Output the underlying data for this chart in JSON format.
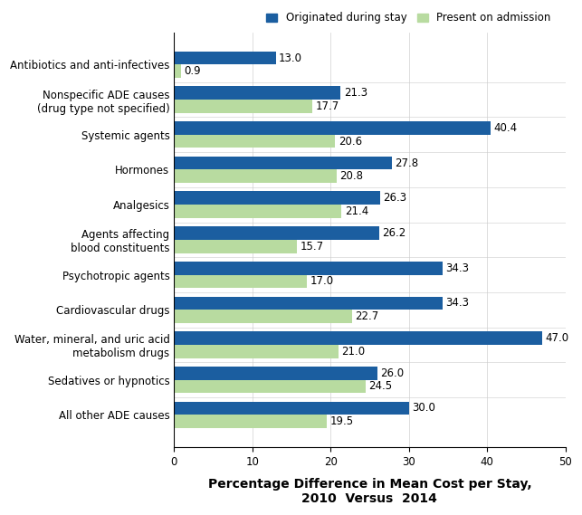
{
  "categories": [
    "Antibiotics and anti-infectives",
    "Nonspecific ADE causes\n(drug type not specified)",
    "Systemic agents",
    "Hormones",
    "Analgesics",
    "Agents affecting\nblood constituents",
    "Psychotropic agents",
    "Cardiovascular drugs",
    "Water, mineral, and uric acid\nmetabolism drugs",
    "Sedatives or hypnotics",
    "All other ADE causes"
  ],
  "originated_during_stay": [
    13.0,
    21.3,
    40.4,
    27.8,
    26.3,
    26.2,
    34.3,
    34.3,
    47.0,
    26.0,
    30.0
  ],
  "present_on_admission": [
    0.9,
    17.7,
    20.6,
    20.8,
    21.4,
    15.7,
    17.0,
    22.7,
    21.0,
    24.5,
    19.5
  ],
  "color_originated": "#1B5EA0",
  "color_present": "#B8DBA0",
  "xlabel": "Percentage Difference in Mean Cost per Stay,\n2010  Versus  2014",
  "legend_originated": "Originated during stay",
  "legend_present": "Present on admission",
  "xlim": [
    0,
    50
  ],
  "xticks": [
    0,
    10,
    20,
    30,
    40,
    50
  ],
  "bar_height": 0.38,
  "label_fontsize": 8.5,
  "tick_fontsize": 8.5,
  "xlabel_fontsize": 10,
  "legend_fontsize": 8.5
}
